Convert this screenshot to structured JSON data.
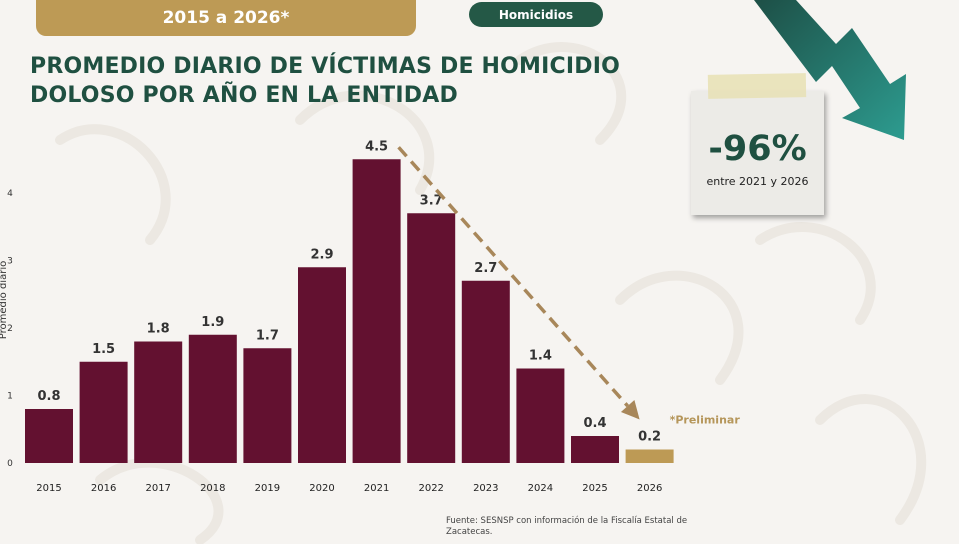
{
  "header": {
    "period_label": "2015 a 2026*",
    "topic_label": "Homicidios",
    "title_line1": "PROMEDIO DIARIO DE VÍCTIMAS DE HOMICIDIO",
    "title_line2": "DOLOSO POR AÑO EN LA ENTIDAD"
  },
  "callout": {
    "value": "-96%",
    "subtitle": "entre 2021 y 2026"
  },
  "source_note": "Fuente: SESNSP con información de la Fiscalía Estatal de Zacatecas.",
  "colors": {
    "bar": "#631130",
    "bar_preliminary": "#bd9a55",
    "accent_green": "#1f5041",
    "trend_arrow": "#a8875a"
  },
  "chart_data": {
    "type": "bar",
    "categories": [
      "2015",
      "2016",
      "2017",
      "2018",
      "2019",
      "2020",
      "2021",
      "2022",
      "2023",
      "2024",
      "2025",
      "2026"
    ],
    "values": [
      0.8,
      1.5,
      1.8,
      1.9,
      1.7,
      2.9,
      4.5,
      3.7,
      2.7,
      1.4,
      0.4,
      0.2
    ],
    "value_labels": [
      "0.8",
      "1.5",
      "1.8",
      "1.9",
      "1.7",
      "2.9",
      "4.5",
      "3.7",
      "2.7",
      "1.4",
      "0.4",
      "0.2"
    ],
    "ylabel": "Promedio diario",
    "yticks": [
      "0",
      "1",
      "2",
      "3",
      "4"
    ],
    "ylim": [
      0,
      4.5
    ],
    "grid": false,
    "legend": "none",
    "preliminary_index": 11,
    "preliminary_label": "*Preliminar",
    "trend": {
      "from": "2021",
      "to": "2026"
    }
  }
}
